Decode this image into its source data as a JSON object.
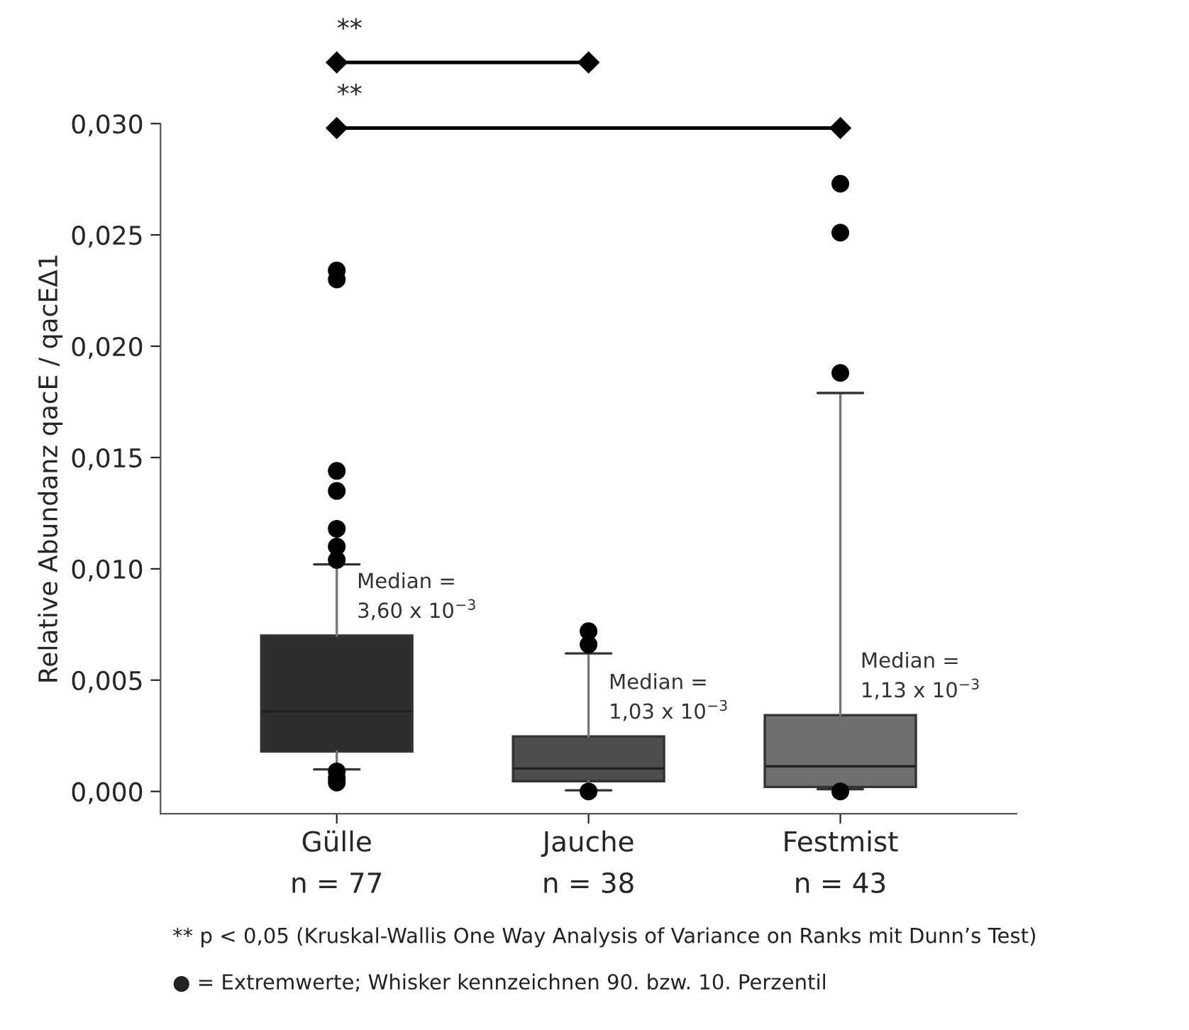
{
  "chart_data": {
    "type": "box",
    "ylabel": "Relative Abundanz qacE / qacEΔ1",
    "categories": [
      "Gülle\nn = 77",
      "Jauche\nn = 38",
      "Festmist\nn = 43"
    ],
    "colors": [
      "#2e2e2e",
      "#4d4d4d",
      "#6f6f6f"
    ],
    "boxes": [
      {
        "low": 0.00099,
        "q1": 0.0018,
        "median": 0.0036,
        "q3": 0.007,
        "high": 0.0102,
        "outliers": [
          0.0234,
          0.023,
          0.0144,
          0.0135,
          0.0118,
          0.011,
          0.0104,
          0.0009,
          0.0006,
          0.0004
        ]
      },
      {
        "low": 5e-05,
        "q1": 0.00046,
        "median": 0.00103,
        "q3": 0.00247,
        "high": 0.0062,
        "outliers": [
          0.0072,
          0.0066,
          0.0
        ]
      },
      {
        "low": 0.0001,
        "q1": 0.0002,
        "median": 0.00113,
        "q3": 0.00343,
        "high": 0.0179,
        "outliers": [
          0.0273,
          0.0251,
          0.0188,
          0.0
        ]
      }
    ],
    "ylim": [
      -0.001,
      0.03
    ],
    "yticks": [
      {
        "value": 0,
        "label": "0,000"
      },
      {
        "value": 0.005,
        "label": "0,005"
      },
      {
        "value": 0.01,
        "label": "0,010"
      },
      {
        "value": 0.015,
        "label": "0,015"
      },
      {
        "value": 0.02,
        "label": "0,020"
      },
      {
        "value": 0.025,
        "label": "0,025"
      },
      {
        "value": 0.03,
        "label": "0,030"
      }
    ],
    "grid": false,
    "annotations": [
      "Median =\n3,60 x 10$^{−3}$",
      "Median =\n1,03 x 10$^{−3}$",
      "Median =\n1,13 x 10$^{−3}$",
      "**",
      "**",
      "** p < 0,05 (Kruskal-Wallis One Way Analysis of Variance on Ranks mit Dunn’s Test)",
      "● = Extremwerte; Whisker kennzeichnen 90. bzw. 10. Perzentil"
    ]
  }
}
